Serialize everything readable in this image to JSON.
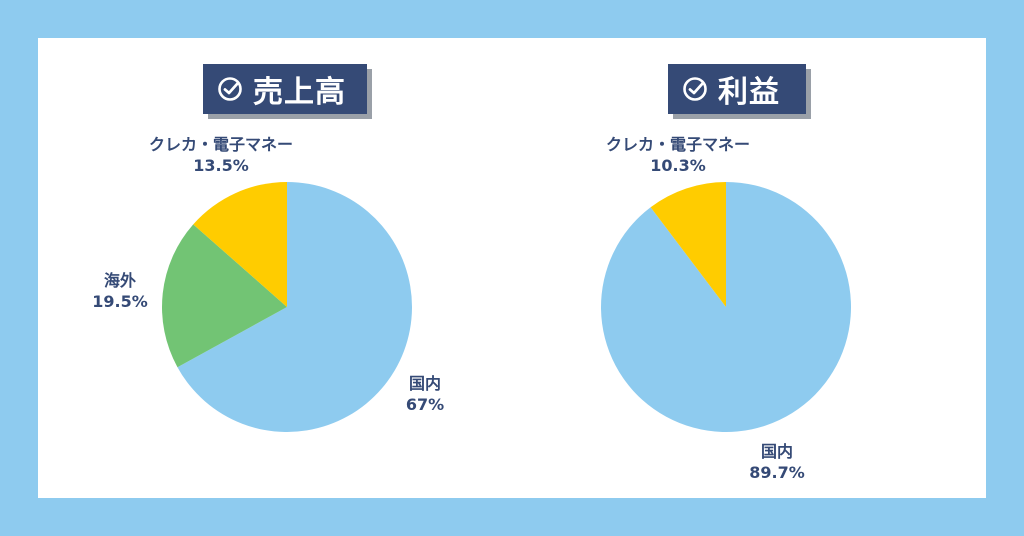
{
  "colors": {
    "background": "#8ecbef",
    "panel": "#ffffff",
    "title_bg": "#354a76",
    "label_text": "#354a76",
    "domestic": "#8ecbef",
    "overseas": "#72c474",
    "card_emoney": "#ffcc00"
  },
  "chart_data": [
    {
      "type": "pie",
      "title": "売上高",
      "title_icon": "check-circle-icon",
      "slices": [
        {
          "label": "国内",
          "value_text": "67%",
          "value": 67,
          "color": "#8ecbef"
        },
        {
          "label": "海外",
          "value_text": "19.5%",
          "value": 19.5,
          "color": "#72c474"
        },
        {
          "label": "クレカ・電子マネー",
          "value_text": "13.5%",
          "value": 13.5,
          "color": "#ffcc00"
        }
      ]
    },
    {
      "type": "pie",
      "title": "利益",
      "title_icon": "check-circle-icon",
      "slices": [
        {
          "label": "国内",
          "value_text": "89.7%",
          "value": 89.7,
          "color": "#8ecbef"
        },
        {
          "label": "クレカ・電子マネー",
          "value_text": "10.3%",
          "value": 10.3,
          "color": "#ffcc00"
        }
      ]
    }
  ]
}
